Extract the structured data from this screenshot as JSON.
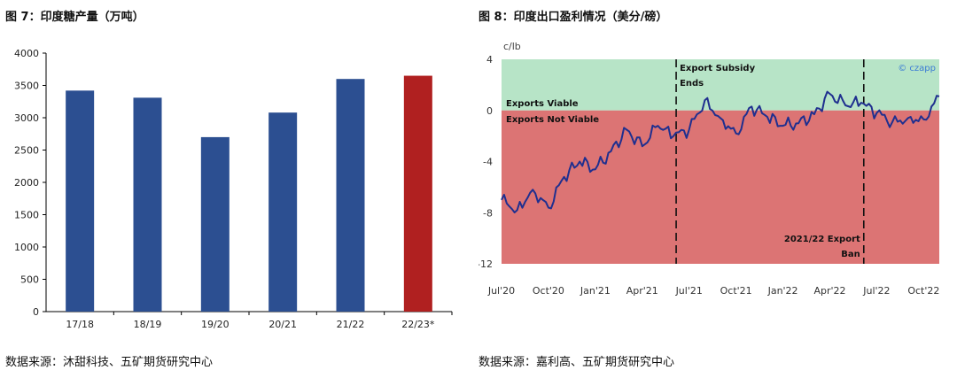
{
  "left": {
    "title": "图 7：印度糖产量（万吨）",
    "source": "数据来源：沐甜科技、五矿期货研究中心"
  },
  "right": {
    "title": "图 8：印度出口盈利情况（美分/磅）",
    "source": "数据来源：嘉利高、五矿期货研究中心"
  },
  "chart_data": [
    {
      "type": "bar",
      "title": "图 7：印度糖产量（万吨）",
      "categories": [
        "17/18",
        "18/19",
        "19/20",
        "20/21",
        "21/22",
        "22/23*"
      ],
      "values": [
        3420,
        3310,
        2700,
        3080,
        3600,
        3650
      ],
      "bar_colors": [
        "#2c4f91",
        "#2c4f91",
        "#2c4f91",
        "#2c4f91",
        "#2c4f91",
        "#b02020"
      ],
      "ylim": [
        0,
        4000
      ],
      "yticks": [
        0,
        500,
        1000,
        1500,
        2000,
        2500,
        3000,
        3500,
        4000
      ],
      "grid": false
    },
    {
      "type": "line",
      "title": "图 8：印度出口盈利情况（美分/磅）",
      "ylabel": "c/lb",
      "ylim": [
        -12,
        4
      ],
      "yticks": [
        4,
        0,
        -4,
        -8,
        -12
      ],
      "xticks": [
        "Jul'20",
        "Oct'20",
        "Jan'21",
        "Apr'21",
        "Jul'21",
        "Oct'21",
        "Jan'22",
        "Apr'22",
        "Jul'22",
        "Oct'22"
      ],
      "x": [
        "2020-07",
        "2020-08",
        "2020-09",
        "2020-10",
        "2020-11",
        "2020-12",
        "2021-01",
        "2021-02",
        "2021-03",
        "2021-04",
        "2021-05",
        "2021-06",
        "2021-07",
        "2021-08",
        "2021-09",
        "2021-10",
        "2021-11",
        "2021-12",
        "2022-01",
        "2022-02",
        "2022-03",
        "2022-04",
        "2022-05",
        "2022-06",
        "2022-07",
        "2022-08",
        "2022-09",
        "2022-10",
        "2022-11"
      ],
      "series": [
        {
          "color": "#1f2f8f",
          "values": [
            -7.0,
            -7.8,
            -6.2,
            -7.6,
            -5.2,
            -4.0,
            -4.6,
            -3.2,
            -1.5,
            -2.8,
            -1.2,
            -2.0,
            -1.5,
            0.8,
            -0.6,
            -1.8,
            0.3,
            -0.5,
            -1.2,
            -1.0,
            -0.3,
            1.3,
            0.4,
            0.6,
            -0.2,
            -0.9,
            -0.6,
            -0.7,
            1.1
          ]
        }
      ],
      "regions": [
        {
          "label": "Exports Viable",
          "from": 0,
          "to": 4,
          "color": "#b7e4c7"
        },
        {
          "label": "Exports Not Viable",
          "from": -12,
          "to": 0,
          "color": "#dc7474"
        }
      ],
      "annotations": [
        {
          "text_lines": [
            "Export Subsidy",
            "Ends"
          ],
          "x": "2021-06"
        },
        {
          "text_lines": [
            "2021/22 Export",
            "Ban"
          ],
          "x": "2022-06"
        }
      ],
      "watermark": "© czapp",
      "grid": false
    }
  ]
}
